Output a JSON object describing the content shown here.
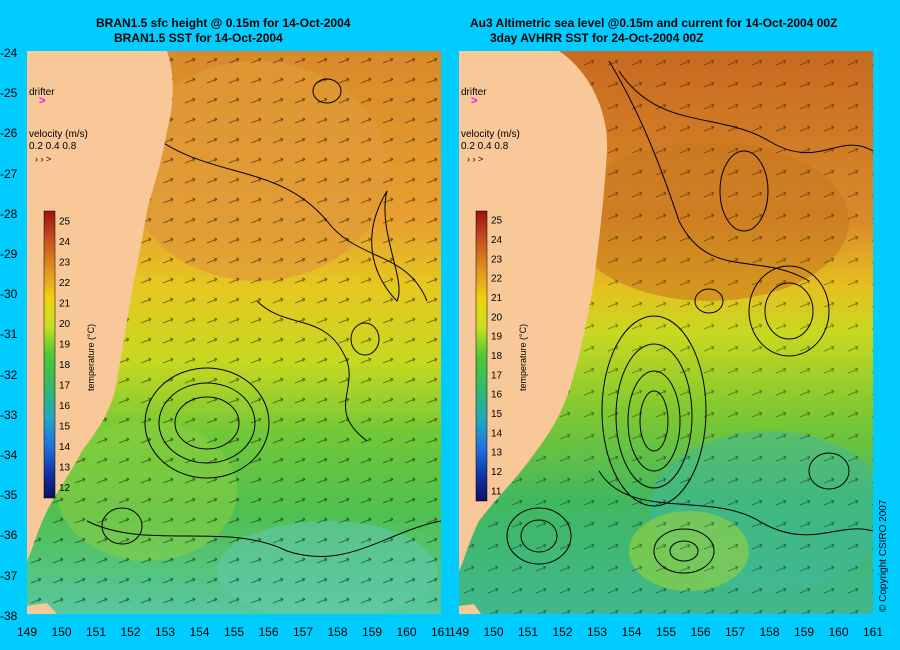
{
  "panels": [
    {
      "id": "left",
      "title_line1": "BRAN1.5 sfc height @ 0.15m for 14-Oct-2004",
      "title_line2": "BRAN1.5 SST for 14-Oct-2004",
      "drifter_label": "drifter",
      "velocity_label": "velocity (m/s)",
      "velocity_scale": "0.2 0.4 0.8",
      "colorbar_label": "temperature (°C)",
      "colorbar_ticks": [
        "25",
        "24",
        "23",
        "22",
        "21",
        "20",
        "19",
        "18",
        "17",
        "16",
        "15",
        "14",
        "13",
        "12"
      ]
    },
    {
      "id": "right",
      "title_line1": "Au3 Altimetric sea level  @0.15m and current for 14-Oct-2004 00Z",
      "title_line2": "3day AVHRR SST for 24-Oct-2004 00Z",
      "drifter_label": "drifter",
      "velocity_label": "velocity (m/s)",
      "velocity_scale": "0.2 0.4 0.8",
      "colorbar_label": "temperature (°C)",
      "colorbar_ticks": [
        "25",
        "24",
        "23",
        "22",
        "21",
        "20",
        "19",
        "18",
        "17",
        "16",
        "15",
        "14",
        "13",
        "12",
        "11"
      ]
    }
  ],
  "y_axis_ticks": [
    "-24",
    "-25",
    "-26",
    "-27",
    "-28",
    "-29",
    "-30",
    "-31",
    "-32",
    "-33",
    "-34",
    "-35",
    "-36",
    "-37",
    "-38"
  ],
  "x_axis_ticks": [
    "149",
    "150",
    "151",
    "152",
    "153",
    "154",
    "155",
    "156",
    "157",
    "158",
    "159",
    "160",
    "161"
  ],
  "copyright": "© Copyright CSIRO 2007",
  "colors": {
    "background": "#00ccff",
    "land": "#f8c898",
    "drifter": "#ff00ff"
  }
}
